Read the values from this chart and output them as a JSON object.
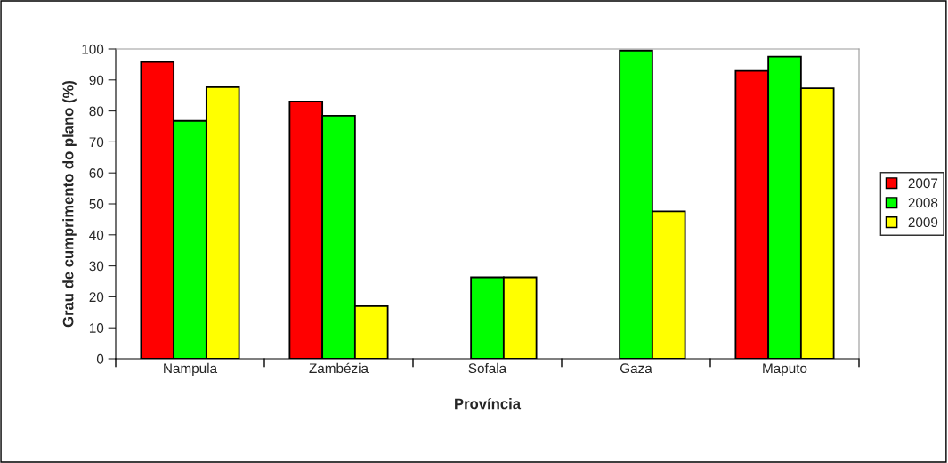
{
  "chart_data": {
    "type": "bar",
    "xlabel": "Província",
    "ylabel": "Grau de cumprimento do plano (%)",
    "categories": [
      "Nampula",
      "Zambézia",
      "Sofala",
      "Gaza",
      "Maputo"
    ],
    "series": [
      {
        "name": "2007",
        "color": "#ff0000",
        "values": [
          95.8,
          83.1,
          null,
          null,
          92.9
        ]
      },
      {
        "name": "2008",
        "color": "#00ff00",
        "values": [
          76.8,
          78.5,
          26.3,
          99.5,
          97.5
        ]
      },
      {
        "name": "2009",
        "color": "#ffff00",
        "values": [
          87.7,
          17.0,
          26.3,
          47.6,
          87.3
        ]
      }
    ],
    "ylim": [
      0,
      100
    ],
    "yticks": [
      0,
      10,
      20,
      30,
      40,
      50,
      60,
      70,
      80,
      90,
      100
    ],
    "grid": false,
    "legend": "right"
  }
}
